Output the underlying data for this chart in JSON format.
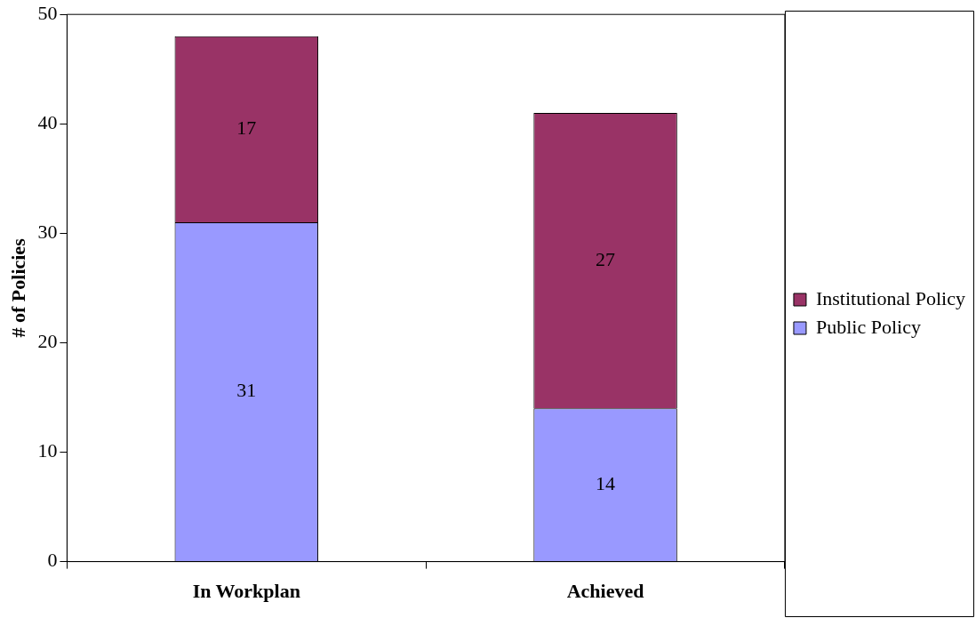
{
  "chart_data": {
    "type": "bar",
    "ylabel": "# of Policies",
    "categories": [
      "In Workplan",
      "Achieved"
    ],
    "stacked": true,
    "data_labels": true,
    "legend": "right",
    "grid": false,
    "series": [
      {
        "name": "Public Policy",
        "color": "#9999ff",
        "values": [
          31,
          14
        ]
      },
      {
        "name": "Institutional Policy",
        "color": "#993366",
        "values": [
          17,
          27
        ]
      }
    ],
    "ylim": [
      0,
      50
    ],
    "yticks": [
      0,
      10,
      20,
      30,
      40,
      50
    ]
  }
}
